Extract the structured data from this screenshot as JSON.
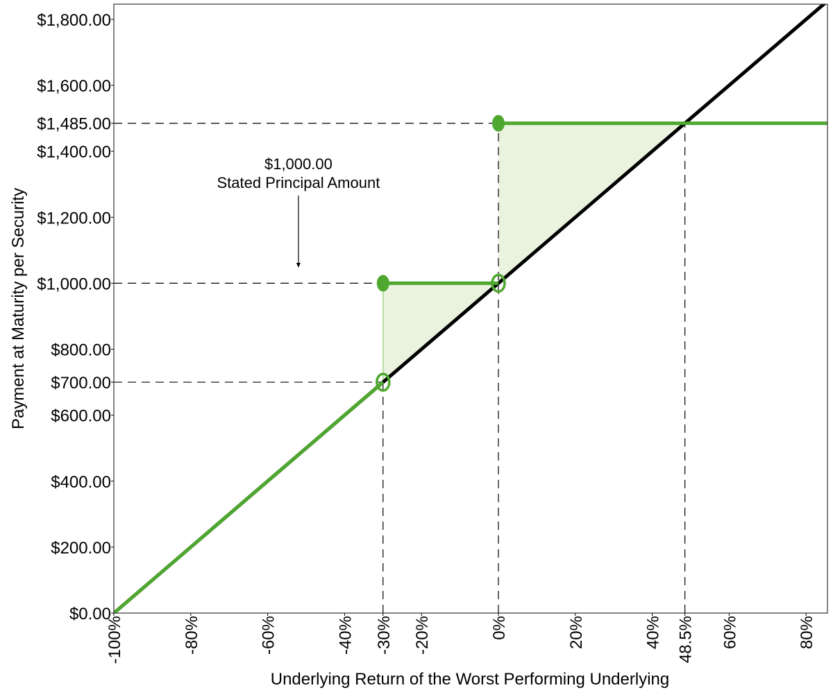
{
  "chart_data": {
    "type": "line",
    "title": "",
    "xlabel": "Underlying Return of the Worst Performing Underlying",
    "ylabel": "Payment at Maturity per Security",
    "xlim": [
      -100,
      85.7
    ],
    "ylim": [
      0,
      1845
    ],
    "x_ticks": [
      -100,
      -80,
      -60,
      -40,
      -30,
      -20,
      0,
      20,
      40,
      48.5,
      60,
      80
    ],
    "x_tick_labels": [
      "-100%",
      "-80%",
      "-60%",
      "-40%",
      "-30%",
      "-20%",
      "0%",
      "20%",
      "40%",
      "48.5%",
      "60%",
      "80%"
    ],
    "y_ticks": [
      0,
      200,
      400,
      600,
      700,
      800,
      1000,
      1200,
      1400,
      1485,
      1600,
      1800
    ],
    "y_tick_labels": [
      "$0.00",
      "$200.00",
      "$400.00",
      "$600.00",
      "$700.00",
      "$800.00",
      "$1,000.00",
      "$1,200.00",
      "$1,400.00",
      "$1,485.00",
      "$1,600.00",
      "$1,800.00"
    ],
    "grid": false,
    "series": [
      {
        "role": "underlying",
        "color": "#000000",
        "points": [
          [
            -100,
            0
          ],
          [
            85.7,
            1857
          ]
        ]
      },
      {
        "role": "security-payoff",
        "color": "#4ea72e",
        "segments": [
          [
            [
              -100,
              0
            ],
            [
              -30,
              700
            ]
          ],
          [
            [
              -30,
              1000
            ],
            [
              0,
              1000
            ]
          ],
          [
            [
              0,
              1485
            ],
            [
              85.7,
              1485
            ]
          ]
        ]
      }
    ],
    "markers": [
      {
        "x": -30,
        "y": 1000,
        "filled": true
      },
      {
        "x": -30,
        "y": 700,
        "filled": false
      },
      {
        "x": 0,
        "y": 1000,
        "filled": false
      },
      {
        "x": 0,
        "y": 1485,
        "filled": true
      }
    ],
    "shaded_regions": [
      {
        "color": "#e9f3de",
        "polygon": [
          [
            -30,
            700
          ],
          [
            -30,
            1000
          ],
          [
            0,
            1000
          ]
        ]
      },
      {
        "color": "#e9f3de",
        "polygon": [
          [
            0,
            1000
          ],
          [
            0,
            1485
          ],
          [
            48.5,
            1485
          ]
        ]
      }
    ],
    "reference_lines": {
      "horizontal": [
        {
          "y": 1485,
          "to_x": 0
        },
        {
          "y": 1000,
          "to_x": -30
        },
        {
          "y": 700,
          "to_x": -30
        }
      ],
      "vertical": [
        {
          "x": -30,
          "to_y": 700
        },
        {
          "x": 0,
          "to_y": 1485
        },
        {
          "x": 48.5,
          "to_y": 1485
        }
      ]
    },
    "annotation": {
      "line1": "$1,000.00",
      "line2": "Stated Principal Amount",
      "x": -52,
      "y_top": 1265,
      "y_arrow": 1045
    }
  }
}
